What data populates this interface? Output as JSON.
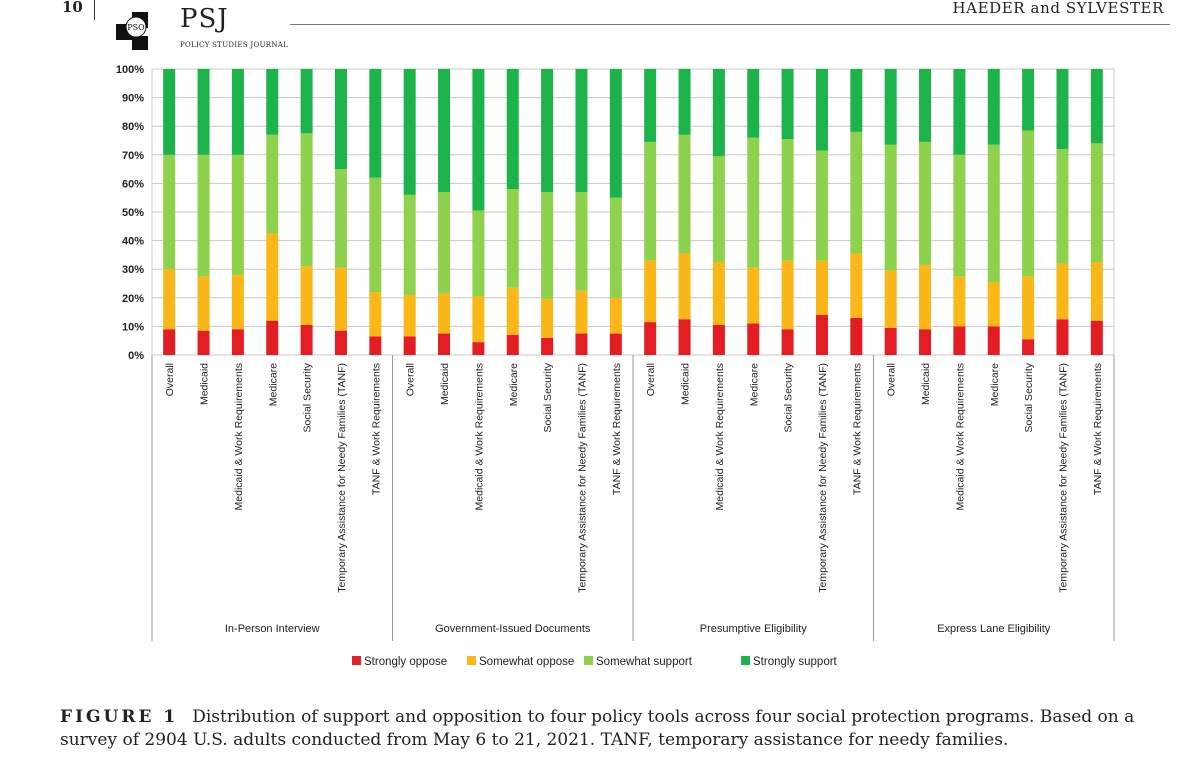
{
  "header": {
    "page_number": "10",
    "logo_badge": "PSO",
    "journal_abbr": "PSJ",
    "journal_name": "POLICY STUDIES JOURNAL",
    "running_head": "HAEDER and SYLVESTER"
  },
  "caption": {
    "label": "FIGURE 1",
    "text": "Distribution of support and opposition to four policy tools across four social protection programs. Based on a survey of 2904 U.S. adults conducted from May 6 to 21, 2021. TANF, temporary assistance for needy families."
  },
  "colors": {
    "strongly_oppose": "#e41c23",
    "somewhat_oppose": "#fbb617",
    "somewhat_support": "#8ed14c",
    "strongly_support": "#1db34b"
  },
  "chart_data": {
    "type": "bar",
    "stacked": true,
    "ylim": [
      0,
      100
    ],
    "yticks": [
      "0%",
      "10%",
      "20%",
      "30%",
      "40%",
      "50%",
      "60%",
      "70%",
      "80%",
      "90%",
      "100%"
    ],
    "grid": true,
    "legend": [
      "Strongly oppose",
      "Somewhat oppose",
      "Somewhat support",
      "Strongly support"
    ],
    "legend_position": "bottom",
    "series_keys": [
      "strongly_oppose",
      "somewhat_oppose",
      "somewhat_support",
      "strongly_support"
    ],
    "groups": [
      {
        "name": "In-Person Interview",
        "bars": [
          {
            "label": "Overall",
            "values": [
              9,
              21,
              40,
              30
            ]
          },
          {
            "label": "Medicaid",
            "values": [
              8.5,
              19,
              42.5,
              30
            ]
          },
          {
            "label": "Medicaid & Work Requirements",
            "values": [
              9,
              19,
              42,
              30
            ]
          },
          {
            "label": "Medicare",
            "values": [
              12,
              30.5,
              34.5,
              23
            ]
          },
          {
            "label": "Social Security",
            "values": [
              10.5,
              20.5,
              46.5,
              22.5
            ]
          },
          {
            "label": "Temporary Assistance for Needy Families (TANF)",
            "values": [
              8.5,
              22,
              34.5,
              35
            ]
          },
          {
            "label": "TANF & Work Requirements",
            "values": [
              6.5,
              15.5,
              40,
              38
            ]
          }
        ]
      },
      {
        "name": "Government-Issued Documents",
        "bars": [
          {
            "label": "Overall",
            "values": [
              6.5,
              14.5,
              35,
              44
            ]
          },
          {
            "label": "Medicaid",
            "values": [
              7.5,
              14,
              35.5,
              43
            ]
          },
          {
            "label": "Medicaid & Work Requirements",
            "values": [
              4.5,
              16,
              30,
              49.5
            ]
          },
          {
            "label": "Medicare",
            "values": [
              7,
              16.5,
              34.5,
              42
            ]
          },
          {
            "label": "Social Security",
            "values": [
              6,
              13.5,
              37.5,
              43
            ]
          },
          {
            "label": "Temporary Assistance for Needy Families (TANF)",
            "values": [
              7.5,
              15,
              34.5,
              43
            ]
          },
          {
            "label": "TANF & Work Requirements",
            "values": [
              7.5,
              12.5,
              35,
              45
            ]
          }
        ]
      },
      {
        "name": "Presumptive Eligibility",
        "bars": [
          {
            "label": "Overall",
            "values": [
              11.5,
              21.5,
              41.5,
              25.5
            ]
          },
          {
            "label": "Medicaid",
            "values": [
              12.5,
              23,
              41.5,
              23
            ]
          },
          {
            "label": "Medicaid & Work Requirements",
            "values": [
              10.5,
              22,
              37,
              30.5
            ]
          },
          {
            "label": "Medicare",
            "values": [
              11,
              19.5,
              45.5,
              24
            ]
          },
          {
            "label": "Social Security",
            "values": [
              9,
              24,
              42.5,
              24.5
            ]
          },
          {
            "label": "Temporary Assistance for Needy Families (TANF)",
            "values": [
              14,
              19,
              38.5,
              28.5
            ]
          },
          {
            "label": "TANF & Work Requirements",
            "values": [
              13,
              22.5,
              42.5,
              22
            ]
          }
        ]
      },
      {
        "name": "Express Lane Eligibility",
        "bars": [
          {
            "label": "Overall",
            "values": [
              9.5,
              20,
              44,
              26.5
            ]
          },
          {
            "label": "Medicaid",
            "values": [
              9,
              22.5,
              43,
              25.5
            ]
          },
          {
            "label": "Medicaid & Work Requirements",
            "values": [
              10,
              17.5,
              42.5,
              30
            ]
          },
          {
            "label": "Medicare",
            "values": [
              10,
              15.5,
              48,
              26.5
            ]
          },
          {
            "label": "Social Security",
            "values": [
              5.5,
              22,
              51,
              21.5
            ]
          },
          {
            "label": "Temporary Assistance for Needy Families (TANF)",
            "values": [
              12.5,
              19.5,
              40,
              28
            ]
          },
          {
            "label": "TANF & Work Requirements",
            "values": [
              12,
              20.5,
              41.5,
              26
            ]
          }
        ]
      }
    ]
  }
}
